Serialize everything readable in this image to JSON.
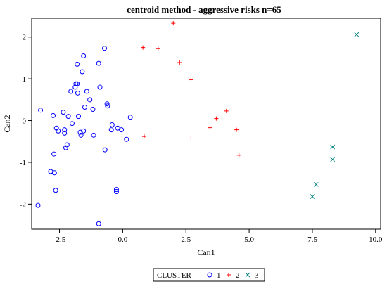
{
  "chart_data": {
    "type": "scatter",
    "title": "centroid method - aggressive risks n=65",
    "xlabel": "Can1",
    "ylabel": "Can2",
    "xlim": [
      -3.6,
      10.2
    ],
    "ylim": [
      -2.6,
      2.45
    ],
    "xticks": [
      -2.5,
      0.0,
      2.5,
      5.0,
      7.5,
      10.0
    ],
    "xtick_labels": [
      "-2.5",
      "0.0",
      "2.5",
      "5.0",
      "7.5",
      "10.0"
    ],
    "yticks": [
      2,
      1,
      0,
      -1,
      -2
    ],
    "ytick_labels": [
      "2",
      "1",
      "0",
      "-1",
      "-2"
    ],
    "grid": false,
    "legend": {
      "title": "CLUSTER",
      "position": "bottom-center"
    },
    "series": [
      {
        "name": "1",
        "marker": "circle",
        "color": "#0000ff",
        "points": [
          [
            -3.25,
            0.25
          ],
          [
            -2.85,
            -1.22
          ],
          [
            -2.75,
            0.12
          ],
          [
            -2.72,
            -0.8
          ],
          [
            -2.7,
            -1.25
          ],
          [
            -2.65,
            -1.67
          ],
          [
            -2.62,
            -0.18
          ],
          [
            -2.55,
            -0.25
          ],
          [
            -2.35,
            0.2
          ],
          [
            -2.3,
            -0.22
          ],
          [
            -2.3,
            -0.3
          ],
          [
            -2.25,
            -0.65
          ],
          [
            -2.2,
            -0.58
          ],
          [
            -2.15,
            0.1
          ],
          [
            -2.05,
            0.7
          ],
          [
            -2.0,
            -0.07
          ],
          [
            -1.88,
            0.8
          ],
          [
            -1.85,
            0.88
          ],
          [
            -1.8,
            1.35
          ],
          [
            -1.8,
            0.88
          ],
          [
            -1.78,
            0.66
          ],
          [
            -1.75,
            0.1
          ],
          [
            -1.68,
            -0.28
          ],
          [
            -1.65,
            -0.35
          ],
          [
            -1.6,
            1.17
          ],
          [
            -1.55,
            1.55
          ],
          [
            -1.55,
            -0.25
          ],
          [
            -1.5,
            0.32
          ],
          [
            -1.42,
            0.7
          ],
          [
            -1.3,
            0.5
          ],
          [
            -1.18,
            0.27
          ],
          [
            -1.15,
            -0.35
          ],
          [
            -0.95,
            1.37
          ],
          [
            -0.9,
            0.8
          ],
          [
            -0.72,
            1.73
          ],
          [
            -0.7,
            -0.7
          ],
          [
            -0.62,
            0.4
          ],
          [
            -0.6,
            0.35
          ],
          [
            -0.45,
            -0.22
          ],
          [
            -0.42,
            -0.1
          ],
          [
            -0.25,
            -1.65
          ],
          [
            -0.25,
            -1.7
          ],
          [
            -0.2,
            -0.18
          ],
          [
            -0.05,
            -0.22
          ],
          [
            0.15,
            -0.45
          ],
          [
            0.3,
            0.08
          ],
          [
            -3.35,
            -2.03
          ],
          [
            -0.95,
            -2.47
          ]
        ]
      },
      {
        "name": "2",
        "marker": "plus",
        "color": "#ff0000",
        "points": [
          [
            2.0,
            2.33
          ],
          [
            0.8,
            1.75
          ],
          [
            1.4,
            1.73
          ],
          [
            2.25,
            1.39
          ],
          [
            2.7,
            0.98
          ],
          [
            4.1,
            0.23
          ],
          [
            3.7,
            0.05
          ],
          [
            3.45,
            -0.17
          ],
          [
            4.5,
            -0.22
          ],
          [
            0.85,
            -0.38
          ],
          [
            2.7,
            -0.42
          ],
          [
            4.6,
            -0.83
          ]
        ]
      },
      {
        "name": "3",
        "marker": "x",
        "color": "#008080",
        "points": [
          [
            9.25,
            2.06
          ],
          [
            8.3,
            -0.63
          ],
          [
            8.3,
            -0.93
          ],
          [
            7.65,
            -1.53
          ],
          [
            7.5,
            -1.82
          ]
        ]
      }
    ]
  }
}
